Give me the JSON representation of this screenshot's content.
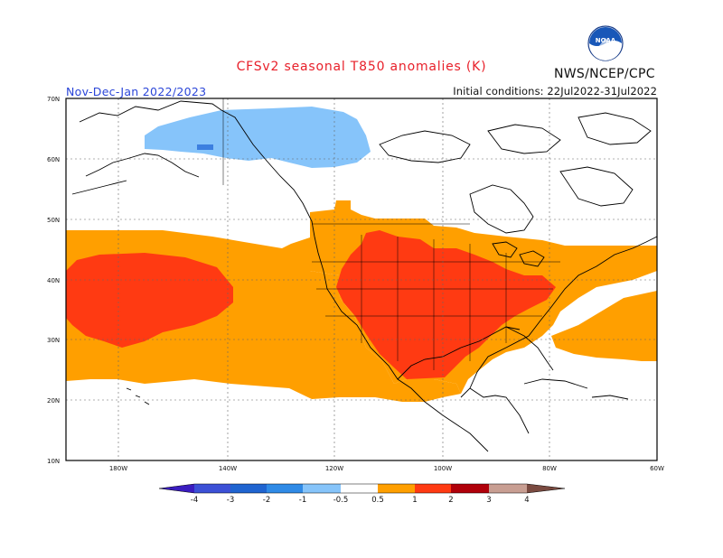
{
  "title": "CFSv2 seasonal T850 anomalies (K)",
  "season": "Nov-Dec-Jan 2022/2023",
  "agency": "NWS/NCEP/CPC",
  "initial_conditions": "Initial conditions: 22Jul2022-31Jul2022",
  "logo": {
    "icon": "noaa-logo-icon",
    "text": "NOAA"
  },
  "map": {
    "projection": "lat-lon",
    "lon_range": [
      -190,
      -60
    ],
    "lat_range": [
      10,
      70
    ],
    "lat_labels": [
      "10N",
      "20N",
      "30N",
      "40N",
      "50N",
      "60N",
      "70N"
    ],
    "lon_labels": [
      "180W",
      "140W",
      "120W",
      "100W",
      "80W",
      "60W"
    ],
    "regions": [
      {
        "name": "cold-anomaly-alaska-canada",
        "category": "-1 to -0.5"
      },
      {
        "name": "cold-anomaly-core",
        "category": "-2 to -1"
      },
      {
        "name": "warm-anomaly-pacific",
        "category": "0.5 to 1"
      },
      {
        "name": "warm-anomaly-north-pacific-core",
        "category": "1 to 2"
      },
      {
        "name": "warm-anomaly-north-america",
        "category": "0.5 to 1"
      },
      {
        "name": "warm-anomaly-us-core",
        "category": "1 to 2"
      },
      {
        "name": "warm-anomaly-atlantic",
        "category": "0.5 to 1"
      }
    ]
  },
  "colorbar": {
    "labels": [
      "-4",
      "-3",
      "-2",
      "-1",
      "-0.5",
      "0.5",
      "1",
      "2",
      "3",
      "4"
    ],
    "colors": [
      "#3a1cbf",
      "#3c50d6",
      "#2f7fe0",
      "#4ea2f0",
      "#86c4fa",
      "#ffffff",
      "#ff9f00",
      "#ff3a12",
      "#b0000a",
      "#c89e92",
      "#7a4a40"
    ]
  }
}
